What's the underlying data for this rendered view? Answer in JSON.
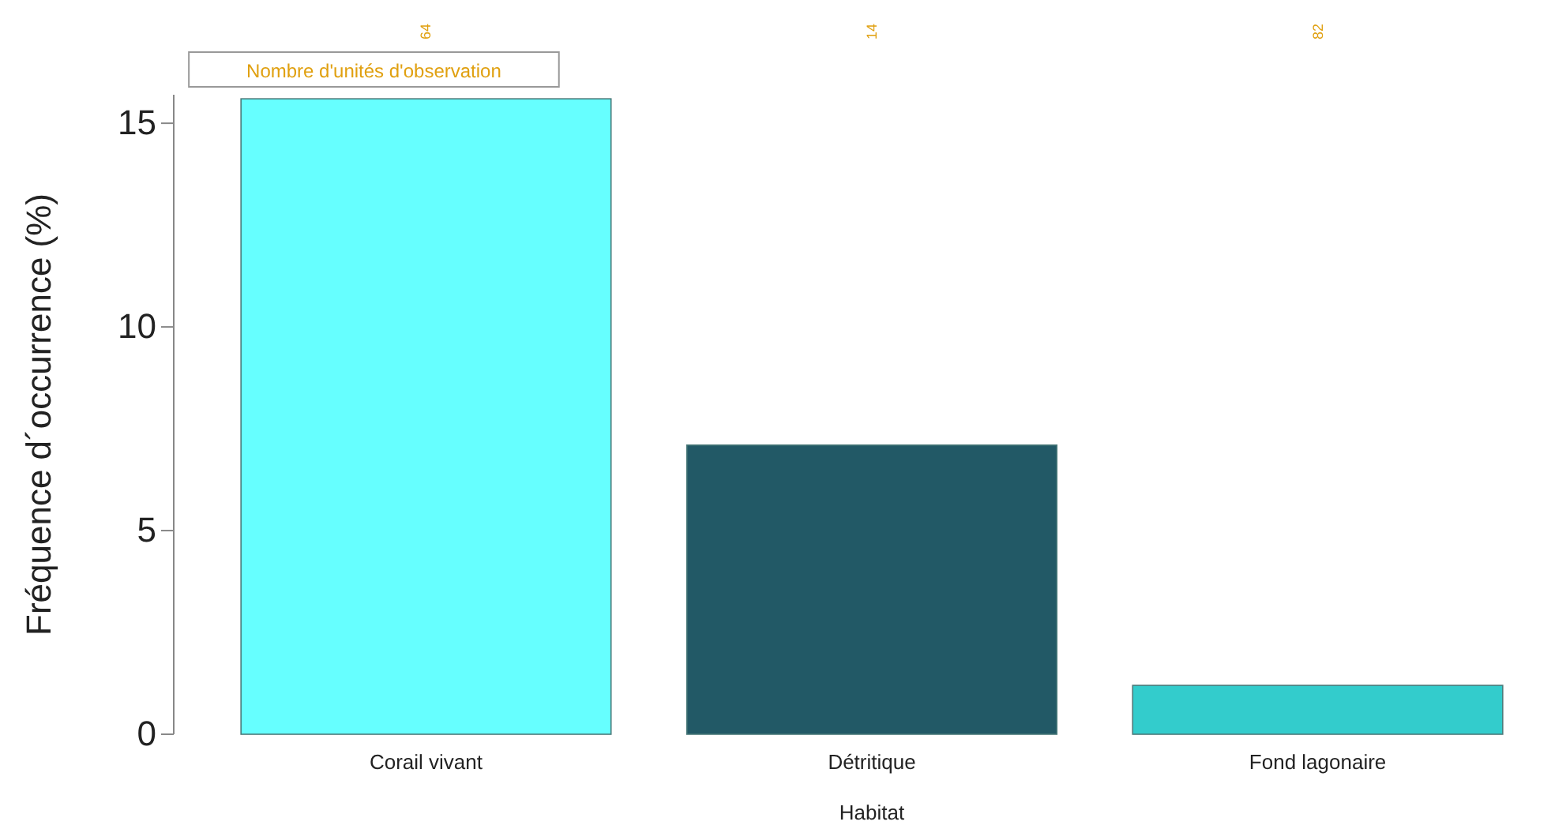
{
  "chart_data": {
    "type": "bar",
    "xlabel": "Habitat",
    "ylabel": "Fréquence d´occurrence (%)",
    "categories": [
      "Corail vivant",
      "Détritique",
      "Fond lagonaire"
    ],
    "values": [
      15.6,
      7.1,
      1.2
    ],
    "colors": [
      "#66ffff",
      "#225966",
      "#33cccc"
    ],
    "ylim": [
      0,
      15.7
    ],
    "yticks": [
      0,
      5,
      10,
      15
    ],
    "grid": false,
    "annotations": [
      "Nombre d'unités d'observation",
      "64",
      "14",
      "82"
    ]
  }
}
